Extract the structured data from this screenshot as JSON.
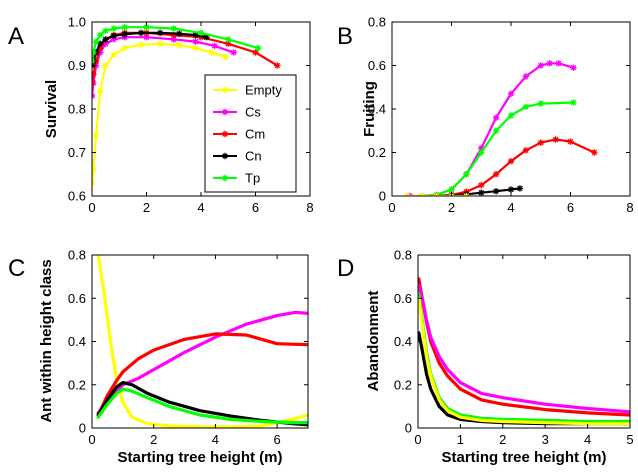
{
  "figure": {
    "legend": {
      "entries": [
        {
          "name": "Empty",
          "color": "#ffff00"
        },
        {
          "name": "Cs",
          "color": "#ff00ff"
        },
        {
          "name": "Cm",
          "color": "#ff0000"
        },
        {
          "name": "Cn",
          "color": "#000000"
        },
        {
          "name": "Tp",
          "color": "#00ff00"
        }
      ],
      "marker": "asterisk",
      "placement": "inside panel A, lower right"
    }
  },
  "chart_data": [
    {
      "panel": "A",
      "type": "line",
      "xlabel": "",
      "ylabel": "Survival",
      "xlim": [
        0,
        8
      ],
      "ylim": [
        0.6,
        1.0
      ],
      "xticks": [
        0,
        2,
        4,
        6,
        8
      ],
      "yticks": [
        0.6,
        0.7,
        0.8,
        0.9,
        1.0
      ],
      "ytick_labels": [
        "0.6",
        "0.7",
        "0.8",
        "0.9",
        "1.0"
      ],
      "markers": true,
      "series": [
        {
          "name": "Empty",
          "color": "#ffff00",
          "x": [
            0,
            0.05,
            0.15,
            0.3,
            0.5,
            0.8,
            1.2,
            1.8,
            2.5,
            3.2,
            3.8,
            4.4,
            4.9
          ],
          "y": [
            0.63,
            0.66,
            0.74,
            0.84,
            0.9,
            0.925,
            0.94,
            0.948,
            0.95,
            0.947,
            0.94,
            0.93,
            0.92
          ]
        },
        {
          "name": "Cs",
          "color": "#ff00ff",
          "x": [
            0,
            0.05,
            0.15,
            0.3,
            0.5,
            0.8,
            1.2,
            2,
            3,
            3.8,
            4.5,
            5.2
          ],
          "y": [
            0.83,
            0.86,
            0.9,
            0.93,
            0.95,
            0.96,
            0.965,
            0.965,
            0.96,
            0.955,
            0.945,
            0.93
          ]
        },
        {
          "name": "Cm",
          "color": "#ff0000",
          "x": [
            0,
            0.05,
            0.15,
            0.3,
            0.5,
            0.8,
            1.2,
            2,
            3,
            4,
            5,
            6,
            6.8
          ],
          "y": [
            0.86,
            0.88,
            0.91,
            0.94,
            0.96,
            0.97,
            0.975,
            0.975,
            0.97,
            0.965,
            0.95,
            0.93,
            0.9
          ]
        },
        {
          "name": "Cn",
          "color": "#000000",
          "x": [
            0,
            0.05,
            0.15,
            0.3,
            0.5,
            0.8,
            1.2,
            1.8,
            2.5,
            3.2,
            3.8,
            4.2
          ],
          "y": [
            0.9,
            0.91,
            0.93,
            0.95,
            0.96,
            0.968,
            0.972,
            0.975,
            0.975,
            0.973,
            0.97,
            0.965
          ]
        },
        {
          "name": "Tp",
          "color": "#00ff00",
          "x": [
            0,
            0.05,
            0.15,
            0.3,
            0.5,
            0.8,
            1.2,
            2,
            3,
            4,
            5,
            6.1
          ],
          "y": [
            0.91,
            0.93,
            0.955,
            0.97,
            0.98,
            0.985,
            0.988,
            0.988,
            0.985,
            0.975,
            0.96,
            0.94
          ]
        }
      ]
    },
    {
      "panel": "B",
      "type": "line",
      "xlabel": "",
      "ylabel": "Fruiting",
      "xlim": [
        0,
        8
      ],
      "ylim": [
        0,
        0.8
      ],
      "xticks": [
        0,
        2,
        4,
        6,
        8
      ],
      "yticks": [
        0,
        0.2,
        0.4,
        0.6,
        0.8
      ],
      "ytick_labels": [
        "0",
        "0.2",
        "0.4",
        "0.6",
        "0.8"
      ],
      "markers": true,
      "series": [
        {
          "name": "Cs",
          "color": "#ff00ff",
          "x": [
            0.6,
            1,
            1.5,
            2,
            2.5,
            3,
            3.5,
            4,
            4.5,
            5,
            5.3,
            5.6,
            6.1
          ],
          "y": [
            0,
            0,
            0.005,
            0.03,
            0.1,
            0.22,
            0.36,
            0.47,
            0.55,
            0.6,
            0.61,
            0.61,
            0.59
          ]
        },
        {
          "name": "Tp",
          "color": "#00ff00",
          "x": [
            1,
            1.5,
            2,
            2.5,
            3,
            3.5,
            4,
            4.5,
            5,
            6.1
          ],
          "y": [
            0,
            0.005,
            0.03,
            0.1,
            0.2,
            0.3,
            0.37,
            0.41,
            0.425,
            0.43
          ]
        },
        {
          "name": "Cm",
          "color": "#ff0000",
          "x": [
            1.5,
            2,
            2.5,
            3,
            3.5,
            4,
            4.5,
            5,
            5.5,
            6,
            6.8
          ],
          "y": [
            0,
            0.005,
            0.02,
            0.05,
            0.1,
            0.16,
            0.21,
            0.245,
            0.26,
            0.25,
            0.2
          ]
        },
        {
          "name": "Cn",
          "color": "#000000",
          "x": [
            1.5,
            2,
            2.5,
            3,
            3.5,
            4,
            4.3
          ],
          "y": [
            0,
            0.003,
            0.008,
            0.015,
            0.022,
            0.03,
            0.035
          ]
        },
        {
          "name": "Empty",
          "color": "#ffff00",
          "x": [
            0.5,
            1,
            1.5,
            2,
            2.5
          ],
          "y": [
            0,
            0,
            0,
            0,
            0
          ]
        }
      ]
    },
    {
      "panel": "C",
      "type": "line",
      "xlabel": "Starting tree height (m)",
      "ylabel": "Ant within height class",
      "xlim": [
        0,
        7
      ],
      "ylim": [
        0,
        0.8
      ],
      "xticks": [
        0,
        2,
        4,
        6
      ],
      "yticks": [
        0,
        0.2,
        0.4,
        0.6,
        0.8
      ],
      "ytick_labels": [
        "0",
        "0.2",
        "0.4",
        "0.6",
        "0.8"
      ],
      "markers": false,
      "series": [
        {
          "name": "Empty",
          "color": "#ffff00",
          "x": [
            0.2,
            0.4,
            0.6,
            0.8,
            1.0,
            1.3,
            1.8,
            2.5,
            3.5,
            4.5,
            5.5,
            6.2,
            7
          ],
          "y": [
            0.8,
            0.62,
            0.4,
            0.22,
            0.12,
            0.05,
            0.02,
            0.01,
            0.005,
            0.005,
            0.01,
            0.03,
            0.06
          ]
        },
        {
          "name": "Cs",
          "color": "#ff00ff",
          "x": [
            0.2,
            0.5,
            0.8,
            1.0,
            1.5,
            2,
            3,
            4,
            5,
            6,
            6.6,
            7
          ],
          "y": [
            0.07,
            0.12,
            0.17,
            0.2,
            0.23,
            0.27,
            0.35,
            0.42,
            0.48,
            0.52,
            0.535,
            0.53
          ]
        },
        {
          "name": "Cm",
          "color": "#ff0000",
          "x": [
            0.2,
            0.5,
            0.8,
            1.0,
            1.5,
            2,
            3,
            4,
            5,
            6,
            7
          ],
          "y": [
            0.06,
            0.15,
            0.22,
            0.26,
            0.32,
            0.36,
            0.41,
            0.435,
            0.43,
            0.39,
            0.385
          ]
        },
        {
          "name": "Cn",
          "color": "#000000",
          "x": [
            0.2,
            0.5,
            0.8,
            1.0,
            1.3,
            1.8,
            2.5,
            3.5,
            4.5,
            5.5,
            6.5,
            7
          ],
          "y": [
            0.06,
            0.13,
            0.19,
            0.21,
            0.2,
            0.16,
            0.12,
            0.08,
            0.055,
            0.035,
            0.02,
            0.015
          ]
        },
        {
          "name": "Tp",
          "color": "#00ff00",
          "x": [
            0.2,
            0.5,
            0.8,
            1.0,
            1.3,
            1.8,
            2.5,
            3.5,
            4.5,
            5.5,
            6.5,
            7
          ],
          "y": [
            0.05,
            0.11,
            0.16,
            0.18,
            0.17,
            0.14,
            0.1,
            0.06,
            0.04,
            0.03,
            0.025,
            0.025
          ]
        }
      ]
    },
    {
      "panel": "D",
      "type": "line",
      "xlabel": "Starting tree height (m)",
      "ylabel": "Abandonment",
      "xlim": [
        0,
        5
      ],
      "ylim": [
        0,
        0.8
      ],
      "xticks": [
        0,
        1,
        2,
        3,
        4,
        5
      ],
      "yticks": [
        0,
        0.2,
        0.4,
        0.6,
        0.8
      ],
      "ytick_labels": [
        "0",
        "0.2",
        "0.4",
        "0.6",
        "0.8"
      ],
      "markers": false,
      "series": [
        {
          "name": "Cm",
          "color": "#ff0000",
          "x": [
            0.02,
            0.1,
            0.2,
            0.3,
            0.5,
            0.7,
            1.0,
            1.5,
            2,
            3,
            4,
            5
          ],
          "y": [
            0.69,
            0.6,
            0.49,
            0.4,
            0.3,
            0.24,
            0.18,
            0.13,
            0.11,
            0.085,
            0.07,
            0.06
          ]
        },
        {
          "name": "Cs",
          "color": "#ff00ff",
          "x": [
            0.02,
            0.1,
            0.2,
            0.3,
            0.5,
            0.7,
            1.0,
            1.5,
            2,
            3,
            4,
            5
          ],
          "y": [
            0.66,
            0.6,
            0.5,
            0.42,
            0.33,
            0.27,
            0.21,
            0.16,
            0.14,
            0.11,
            0.09,
            0.075
          ]
        },
        {
          "name": "Tp",
          "color": "#00ff00",
          "x": [
            0.02,
            0.1,
            0.2,
            0.3,
            0.5,
            0.7,
            1.0,
            1.5,
            2,
            3,
            4,
            5
          ],
          "y": [
            0.62,
            0.5,
            0.35,
            0.25,
            0.14,
            0.09,
            0.06,
            0.045,
            0.04,
            0.035,
            0.03,
            0.03
          ]
        },
        {
          "name": "Cn",
          "color": "#000000",
          "x": [
            0.02,
            0.1,
            0.2,
            0.3,
            0.5,
            0.7,
            1.0,
            1.5,
            2,
            3,
            4,
            5
          ],
          "y": [
            0.44,
            0.36,
            0.25,
            0.18,
            0.1,
            0.06,
            0.04,
            0.03,
            0.025,
            0.02,
            0.02,
            0.02
          ]
        },
        {
          "name": "Empty",
          "color": "#ffff00",
          "x": [
            0.02,
            0.1,
            0.2,
            0.3,
            0.5,
            0.7,
            1.0,
            1.5,
            2,
            3,
            4,
            5
          ],
          "y": [
            0.6,
            0.48,
            0.33,
            0.24,
            0.13,
            0.08,
            0.05,
            0.035,
            0.03,
            0.025,
            0.02,
            0.02
          ]
        }
      ]
    }
  ]
}
